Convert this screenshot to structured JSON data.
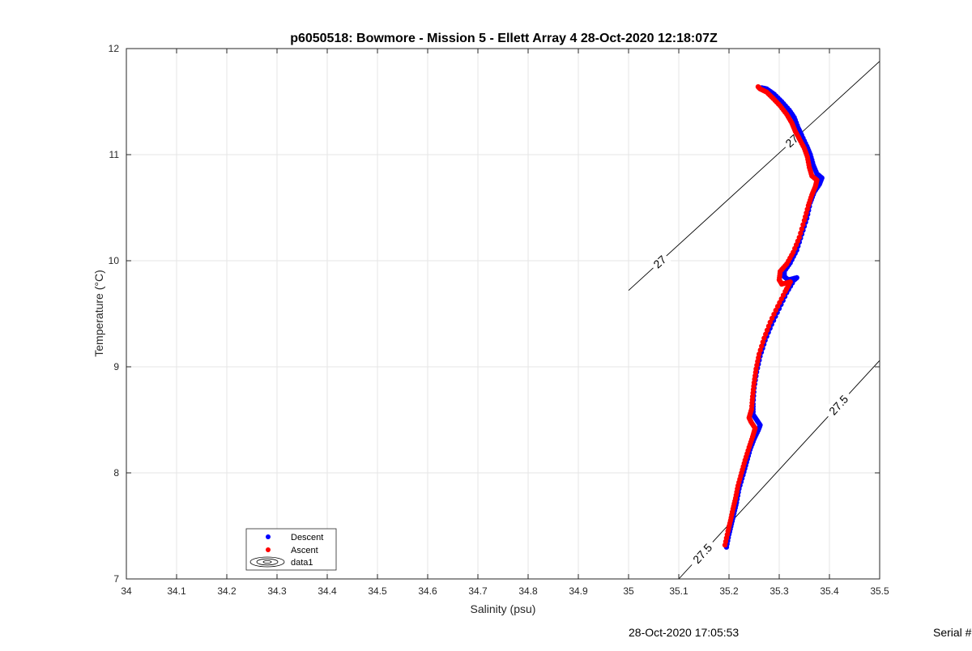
{
  "chart_data": {
    "type": "scatter",
    "title": "p6050518: Bowmore - Mission 5 - Ellett Array 4 28-Oct-2020 12:18:07Z",
    "xlabel": "Salinity (psu)",
    "ylabel": "Temperature (°C)",
    "xlim": [
      34,
      35.5
    ],
    "ylim": [
      7,
      12
    ],
    "xticks": [
      "34",
      "34.1",
      "34.2",
      "34.3",
      "34.4",
      "34.5",
      "34.6",
      "34.7",
      "34.8",
      "34.9",
      "35",
      "35.1",
      "35.2",
      "35.3",
      "35.4",
      "35.5"
    ],
    "yticks": [
      "7",
      "8",
      "9",
      "10",
      "11",
      "12"
    ],
    "grid": true,
    "legend": {
      "placement": "bottom-left",
      "entries": [
        "Descent",
        "Ascent",
        "data1"
      ]
    },
    "colors": {
      "descent": "#0000ff",
      "ascent": "#ff0000",
      "contour": "#000000"
    },
    "series": [
      {
        "name": "Descent",
        "points": [
          [
            35.195,
            7.3
          ],
          [
            35.2,
            7.42
          ],
          [
            35.205,
            7.52
          ],
          [
            35.21,
            7.62
          ],
          [
            35.215,
            7.72
          ],
          [
            35.22,
            7.85
          ],
          [
            35.228,
            7.98
          ],
          [
            35.235,
            8.1
          ],
          [
            35.242,
            8.22
          ],
          [
            35.25,
            8.32
          ],
          [
            35.258,
            8.4
          ],
          [
            35.262,
            8.45
          ],
          [
            35.255,
            8.5
          ],
          [
            35.248,
            8.55
          ],
          [
            35.248,
            8.65
          ],
          [
            35.25,
            8.8
          ],
          [
            35.255,
            8.95
          ],
          [
            35.262,
            9.1
          ],
          [
            35.272,
            9.25
          ],
          [
            35.285,
            9.4
          ],
          [
            35.3,
            9.55
          ],
          [
            35.315,
            9.7
          ],
          [
            35.33,
            9.82
          ],
          [
            35.335,
            9.84
          ],
          [
            35.318,
            9.82
          ],
          [
            35.31,
            9.85
          ],
          [
            35.31,
            9.9
          ],
          [
            35.322,
            9.98
          ],
          [
            35.335,
            10.1
          ],
          [
            35.345,
            10.25
          ],
          [
            35.355,
            10.4
          ],
          [
            35.362,
            10.55
          ],
          [
            35.37,
            10.65
          ],
          [
            35.38,
            10.72
          ],
          [
            35.385,
            10.78
          ],
          [
            35.375,
            10.82
          ],
          [
            35.368,
            10.9
          ],
          [
            35.362,
            11.0
          ],
          [
            35.355,
            11.08
          ],
          [
            35.345,
            11.18
          ],
          [
            35.338,
            11.25
          ],
          [
            35.33,
            11.35
          ],
          [
            35.32,
            11.42
          ],
          [
            35.305,
            11.5
          ],
          [
            35.29,
            11.57
          ],
          [
            35.275,
            11.62
          ],
          [
            35.265,
            11.63
          ]
        ]
      },
      {
        "name": "Ascent",
        "points": [
          [
            35.192,
            7.32
          ],
          [
            35.198,
            7.45
          ],
          [
            35.203,
            7.55
          ],
          [
            35.208,
            7.66
          ],
          [
            35.213,
            7.76
          ],
          [
            35.218,
            7.88
          ],
          [
            35.225,
            8.0
          ],
          [
            35.232,
            8.12
          ],
          [
            35.24,
            8.24
          ],
          [
            35.247,
            8.34
          ],
          [
            35.252,
            8.42
          ],
          [
            35.244,
            8.48
          ],
          [
            35.24,
            8.52
          ],
          [
            35.245,
            8.6
          ],
          [
            35.247,
            8.72
          ],
          [
            35.25,
            8.85
          ],
          [
            35.254,
            8.98
          ],
          [
            35.26,
            9.12
          ],
          [
            35.27,
            9.27
          ],
          [
            35.282,
            9.42
          ],
          [
            35.297,
            9.57
          ],
          [
            35.312,
            9.71
          ],
          [
            35.322,
            9.8
          ],
          [
            35.305,
            9.78
          ],
          [
            35.3,
            9.82
          ],
          [
            35.302,
            9.9
          ],
          [
            35.315,
            9.97
          ],
          [
            35.328,
            10.08
          ],
          [
            35.34,
            10.22
          ],
          [
            35.35,
            10.38
          ],
          [
            35.358,
            10.52
          ],
          [
            35.365,
            10.62
          ],
          [
            35.372,
            10.7
          ],
          [
            35.375,
            10.76
          ],
          [
            35.365,
            10.8
          ],
          [
            35.36,
            10.88
          ],
          [
            35.356,
            10.98
          ],
          [
            35.35,
            11.06
          ],
          [
            35.34,
            11.15
          ],
          [
            35.332,
            11.22
          ],
          [
            35.325,
            11.3
          ],
          [
            35.315,
            11.38
          ],
          [
            35.302,
            11.46
          ],
          [
            35.288,
            11.53
          ],
          [
            35.275,
            11.59
          ],
          [
            35.262,
            11.62
          ],
          [
            35.258,
            11.64
          ]
        ]
      }
    ],
    "contours": [
      {
        "label": "27",
        "from": [
          35.0,
          9.72
        ],
        "to": [
          35.5,
          11.88
        ],
        "label_positions": [
          [
            35.062,
            9.99
          ],
          [
            35.325,
            11.13
          ]
        ]
      },
      {
        "label": "27.5",
        "from": [
          35.1,
          7.0
        ],
        "to": [
          35.5,
          9.06
        ],
        "label_positions": [
          [
            35.147,
            7.24
          ],
          [
            35.418,
            8.64
          ]
        ]
      }
    ]
  },
  "footer": {
    "timestamp": "28-Oct-2020 17:05:53",
    "serial": "Serial #"
  }
}
